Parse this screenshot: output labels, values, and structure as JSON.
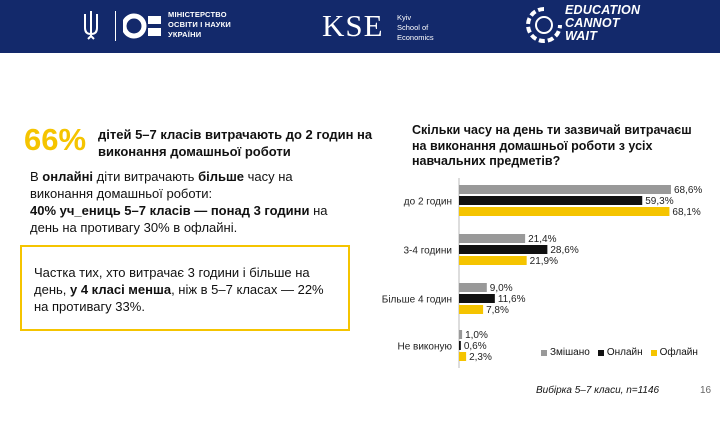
{
  "header": {
    "ministry_lines": [
      "МІНІСТЕРСТВО",
      "ОСВІТИ І НАУКИ",
      "УКРАЇНИ"
    ],
    "kse_mark": "KSE",
    "kse_lines": [
      "Kyiv",
      "School of",
      "Economics"
    ],
    "ecw_lines": [
      "EDUCATION",
      "CANNOT",
      "WAIT"
    ],
    "colors": {
      "background": "#13296b",
      "text": "#ffffff"
    }
  },
  "headline": {
    "percent": "66%",
    "text": "дітей 5–7 класів витрачають до 2 годин на виконання домашньої роботи"
  },
  "paragraph": {
    "l1_a": "В ",
    "l1_b": "онлайні",
    "l1_c": " діти витрачають ",
    "l1_d": "більше",
    "l1_e": " часу на виконання домашньої роботи:",
    "l2_a": "40% уч_ениць 5–7 класів — ",
    "l2_b": "понад 3 години",
    "l2_c": " на день на противагу 30% в офлайні."
  },
  "callout": {
    "a": "Частка тих, хто витрачає 3 години і більше на день, ",
    "b": "у 4 класі менша",
    "c": ", ніж в 5–7 класах — 22% на противагу 33%."
  },
  "colors": {
    "accent": "#f5c400",
    "online": "#111111",
    "mixed": "#999999",
    "offline": "#f5c400"
  },
  "chart_data": {
    "type": "bar",
    "orientation": "horizontal",
    "title": "Скільки часу на день ти зазвичай витрачаєш на виконання домашньої роботи з усіх навчальних предметів?",
    "categories": [
      "до 2 годин",
      "3-4 години",
      "Більше 4 годин",
      "Не виконую"
    ],
    "series": [
      {
        "name": "Змішано",
        "color": "#999999",
        "values": [
          68.6,
          21.4,
          9.0,
          1.0
        ],
        "labels": [
          "68,6%",
          "21,4%",
          "9,0%",
          "1,0%"
        ]
      },
      {
        "name": "Онлайн",
        "color": "#111111",
        "values": [
          59.3,
          28.6,
          11.6,
          0.6
        ],
        "labels": [
          "59,3%",
          "28,6%",
          "11,6%",
          "0,6%"
        ]
      },
      {
        "name": "Офлайн",
        "color": "#f5c400",
        "values": [
          68.1,
          21.9,
          7.8,
          2.3
        ],
        "labels": [
          "68,1%",
          "21,9%",
          "7,8%",
          "2,3%"
        ]
      }
    ],
    "value_unit": "%",
    "xlim": [
      0,
      100
    ],
    "legend_position": "bottom-right",
    "grid": false
  },
  "footer": {
    "sample": "Вибірка 5–7 класи, n=1146",
    "page_number": "16"
  }
}
